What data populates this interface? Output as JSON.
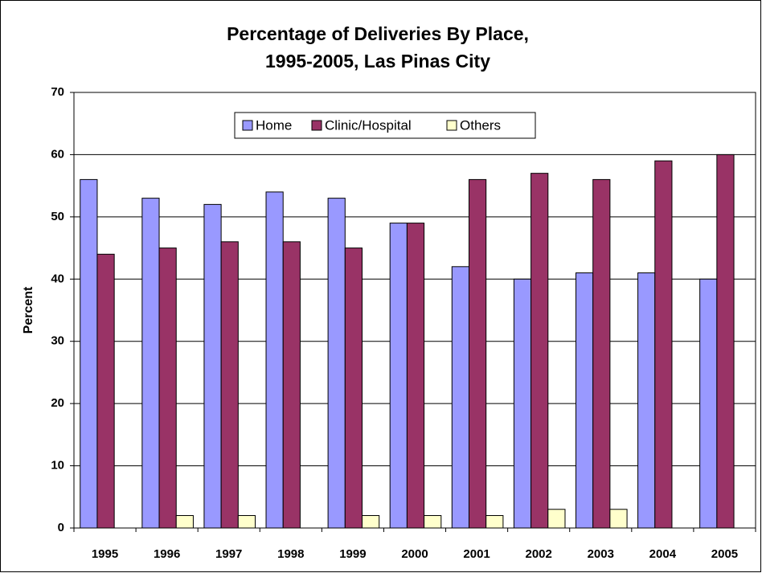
{
  "chart_data": {
    "type": "bar",
    "title": [
      "Percentage of Deliveries By Place,",
      "1995-2005, Las Pinas City"
    ],
    "y_label": "Percent",
    "categories": [
      "1995",
      "1996",
      "1997",
      "1998",
      "1999",
      "2000",
      "2001",
      "2002",
      "2003",
      "2004",
      "2005"
    ],
    "series": [
      {
        "name": "Home",
        "color": "#9999ff",
        "values": [
          56,
          53,
          52,
          54,
          53,
          49,
          42,
          40,
          41,
          41,
          40
        ]
      },
      {
        "name": "Clinic/Hospital",
        "color": "#993366",
        "values": [
          44,
          45,
          46,
          46,
          45,
          49,
          56,
          57,
          56,
          59,
          60
        ]
      },
      {
        "name": "Others",
        "color": "#ffffcc",
        "values": [
          0,
          2,
          2,
          0,
          2,
          2,
          2,
          3,
          3,
          0,
          0
        ]
      }
    ],
    "ylim": [
      0,
      70
    ],
    "yticks": [
      0,
      10,
      20,
      30,
      40,
      50,
      60,
      70
    ],
    "grid": true,
    "legend": "top"
  }
}
